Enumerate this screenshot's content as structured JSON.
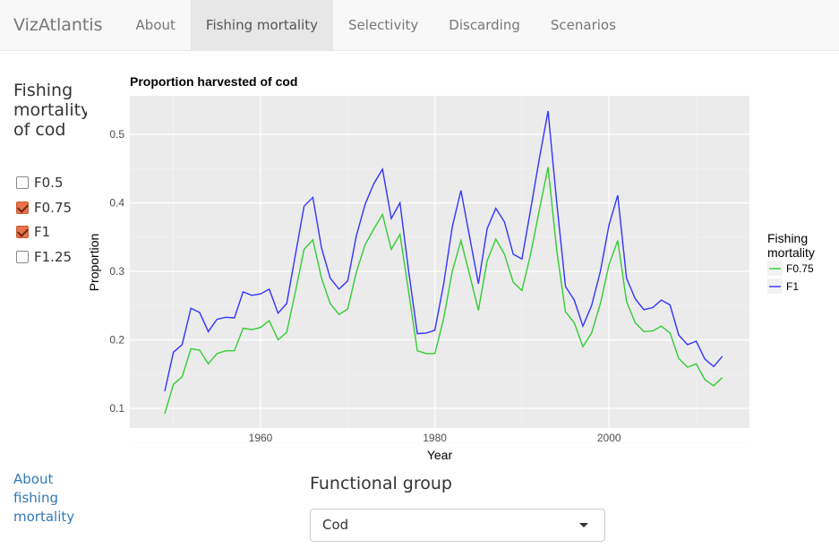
{
  "nav": {
    "brand": "VizAtlantis",
    "tabs": [
      "About",
      "Fishing mortality",
      "Selectivity",
      "Discarding",
      "Scenarios"
    ],
    "active": "Fishing mortality"
  },
  "sidebar": {
    "title": "Fishing mortality of cod",
    "options": [
      {
        "label": "F0.5",
        "checked": false
      },
      {
        "label": "F0.75",
        "checked": true
      },
      {
        "label": "F1",
        "checked": true
      },
      {
        "label": "F1.25",
        "checked": false
      }
    ],
    "about_link": "About fishing mortality"
  },
  "functional_group": {
    "label": "Functional group",
    "value": "Cod"
  },
  "chart_data": {
    "type": "line",
    "title": "Proportion harvested of cod",
    "xlabel": "Year",
    "ylabel": "Proportion",
    "xlim": [
      1946,
      2017
    ],
    "ylim": [
      0.075,
      0.56
    ],
    "xticks": [
      1960,
      1980,
      2000
    ],
    "yticks": [
      0.1,
      0.2,
      0.3,
      0.4,
      0.5
    ],
    "grid": true,
    "legend_title": "Fishing mortality",
    "legend_position": "right",
    "x_start": 1949,
    "series": [
      {
        "name": "F0.75",
        "color": "#33cc33",
        "values": [
          0.092,
          0.135,
          0.146,
          0.187,
          0.185,
          0.165,
          0.18,
          0.184,
          0.184,
          0.217,
          0.215,
          0.218,
          0.228,
          0.2,
          0.211,
          0.27,
          0.332,
          0.346,
          0.29,
          0.253,
          0.237,
          0.245,
          0.299,
          0.339,
          0.362,
          0.383,
          0.332,
          0.354,
          0.27,
          0.184,
          0.18,
          0.18,
          0.23,
          0.3,
          0.345,
          0.295,
          0.243,
          0.315,
          0.347,
          0.325,
          0.284,
          0.272,
          0.325,
          0.39,
          0.452,
          0.33,
          0.241,
          0.225,
          0.19,
          0.21,
          0.253,
          0.31,
          0.345,
          0.256,
          0.225,
          0.212,
          0.213,
          0.22,
          0.21,
          0.173,
          0.16,
          0.165,
          0.142,
          0.133,
          0.145
        ]
      },
      {
        "name": "F1",
        "color": "#3333ff",
        "values": [
          0.125,
          0.182,
          0.193,
          0.246,
          0.24,
          0.212,
          0.23,
          0.233,
          0.232,
          0.27,
          0.265,
          0.267,
          0.274,
          0.239,
          0.253,
          0.324,
          0.395,
          0.408,
          0.334,
          0.29,
          0.274,
          0.286,
          0.352,
          0.398,
          0.428,
          0.449,
          0.377,
          0.4,
          0.3,
          0.209,
          0.21,
          0.214,
          0.28,
          0.365,
          0.418,
          0.35,
          0.282,
          0.362,
          0.392,
          0.372,
          0.325,
          0.318,
          0.39,
          0.465,
          0.534,
          0.4,
          0.278,
          0.258,
          0.22,
          0.25,
          0.3,
          0.368,
          0.411,
          0.29,
          0.26,
          0.244,
          0.247,
          0.258,
          0.251,
          0.207,
          0.193,
          0.198,
          0.172,
          0.161,
          0.176
        ]
      }
    ]
  }
}
